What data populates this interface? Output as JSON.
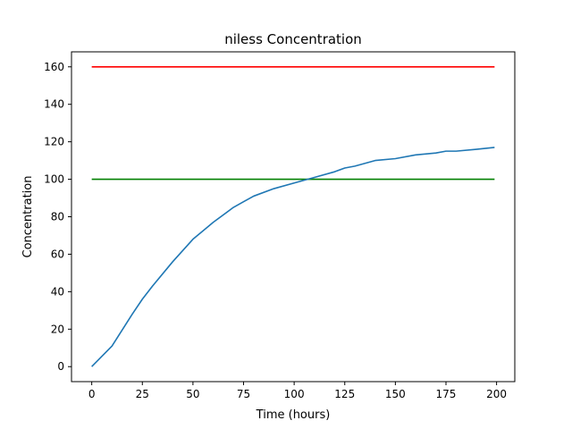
{
  "chart_data": {
    "type": "line",
    "title": "niless Concentration",
    "xlabel": "Time (hours)",
    "ylabel": "Concentration",
    "xlim": [
      -10,
      209
    ],
    "ylim": [
      -8,
      168
    ],
    "xticks": [
      0,
      25,
      50,
      75,
      100,
      125,
      150,
      175,
      200
    ],
    "yticks": [
      0,
      20,
      40,
      60,
      80,
      100,
      120,
      140,
      160
    ],
    "grid": false,
    "series": [
      {
        "color": "#ff0000",
        "x": [
          0,
          199
        ],
        "y": [
          160,
          160
        ]
      },
      {
        "color": "#008000",
        "x": [
          0,
          199
        ],
        "y": [
          100,
          100
        ]
      },
      {
        "color": "#1f77b4",
        "x": [
          0,
          10,
          20,
          25,
          30,
          40,
          50,
          60,
          70,
          75,
          80,
          90,
          100,
          110,
          120,
          125,
          130,
          140,
          150,
          160,
          170,
          175,
          180,
          190,
          199
        ],
        "y": [
          0,
          11,
          28,
          36,
          43,
          56,
          68,
          77,
          85,
          88,
          91,
          95,
          98,
          101,
          104,
          106,
          107,
          110,
          111,
          113,
          114,
          115,
          115,
          116,
          117
        ]
      }
    ]
  }
}
